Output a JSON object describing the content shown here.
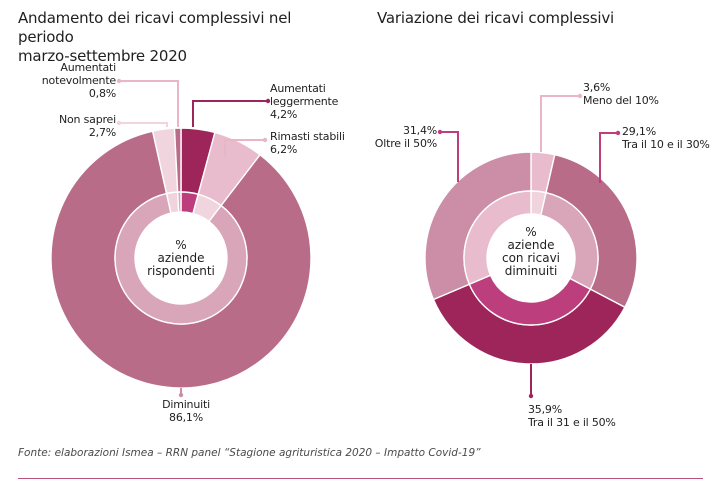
{
  "colors": {
    "dark": "#9e2559",
    "magenta": "#bd3e7c",
    "rose": "#b86c88",
    "mid": "#cc8ea6",
    "light": "#e8bccc",
    "pale": "#f0d4de",
    "innerRose": "#d8a5b9",
    "innerPale": "#f0d3dd",
    "leader": "#e8b7c7",
    "footLine": "#b8527a"
  },
  "chart_data": [
    {
      "type": "pie",
      "title": "Andamento dei ricavi complessivi nel periodo marzo-settembre 2020",
      "center_label": [
        "%",
        "aziende",
        "rispondenti"
      ],
      "slices": [
        {
          "pct": "4,2%",
          "name1": "Aumentati",
          "name2": "leggermente",
          "value": 4.2,
          "outer": "dark",
          "inner": "magenta",
          "leader": "dark"
        },
        {
          "pct": "6,2%",
          "name1": "Rimasti stabili",
          "name2": "",
          "value": 6.2,
          "outer": "light",
          "inner": "pale",
          "leader": "leader"
        },
        {
          "pct": "86,1%",
          "name1": "Diminuiti",
          "name2": "",
          "value": 86.1,
          "outer": "rose",
          "inner": "innerRose",
          "leader": "mid"
        },
        {
          "pct": "2,7%",
          "name1": "Non saprei",
          "name2": "",
          "value": 2.7,
          "outer": "pale",
          "inner": "innerPale",
          "leader": "pale"
        },
        {
          "pct": "0,8%",
          "name1": "Aumentati",
          "name2": "notevolmente",
          "value": 0.8,
          "outer": "rose",
          "inner": "innerRose",
          "leader": "leader"
        }
      ]
    },
    {
      "type": "pie",
      "title": "Variazione dei ricavi complessivi",
      "center_label": [
        "%",
        "aziende",
        "con ricavi",
        "diminuiti"
      ],
      "slices": [
        {
          "pct": "3,6%",
          "name1": "Meno del 10%",
          "name2": "",
          "value": 3.6,
          "outer": "light",
          "inner": "innerPale",
          "leader": "leader"
        },
        {
          "pct": "29,1%",
          "name1": "Tra il 10 e il 30%",
          "name2": "",
          "value": 29.1,
          "outer": "rose",
          "inner": "innerRose",
          "leader": "magenta"
        },
        {
          "pct": "35,9%",
          "name1": "Tra il 31 e il 50%",
          "name2": "",
          "value": 35.9,
          "outer": "dark",
          "inner": "magenta",
          "leader": "dark"
        },
        {
          "pct": "31,4%",
          "name1": "Oltre il 50%",
          "name2": "",
          "value": 31.4,
          "outer": "mid",
          "inner": "light",
          "leader": "magenta"
        }
      ]
    }
  ],
  "footnote": "Fonte: elaborazioni Ismea – RRN panel “Stagione agrituristica 2020 – Impatto Covid-19”"
}
